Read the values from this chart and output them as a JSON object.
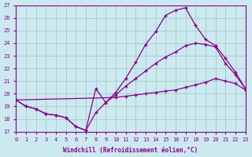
{
  "xlabel": "Windchill (Refroidissement éolien,°C)",
  "xlim": [
    0,
    23
  ],
  "ylim": [
    17,
    27
  ],
  "yticks": [
    17,
    18,
    19,
    20,
    21,
    22,
    23,
    24,
    25,
    26,
    27
  ],
  "xticks": [
    0,
    1,
    2,
    3,
    4,
    5,
    6,
    7,
    8,
    9,
    10,
    11,
    12,
    13,
    14,
    15,
    16,
    17,
    18,
    19,
    20,
    21,
    22,
    23
  ],
  "bg_color": "#cce9f0",
  "grid_color": "#aacfcc",
  "line_color": "#880088",
  "curve_top_x": [
    0,
    1,
    2,
    3,
    4,
    5,
    6,
    7,
    8,
    9,
    10,
    11,
    12,
    13,
    14,
    15,
    16,
    17,
    18,
    19,
    20,
    21,
    22,
    23
  ],
  "curve_top_y": [
    19.5,
    19.0,
    18.8,
    18.4,
    18.3,
    18.1,
    17.4,
    17.1,
    20.4,
    19.3,
    20.1,
    21.2,
    22.5,
    23.9,
    24.9,
    26.2,
    26.6,
    26.8,
    25.4,
    24.3,
    23.8,
    22.8,
    21.7,
    20.4
  ],
  "curve_mid_x": [
    0,
    1,
    2,
    3,
    4,
    5,
    6,
    7,
    8,
    9,
    10,
    11,
    12,
    13,
    14,
    15,
    16,
    17,
    18,
    19,
    20,
    21,
    22,
    23
  ],
  "curve_mid_y": [
    19.5,
    19.0,
    18.8,
    18.4,
    18.3,
    18.1,
    17.4,
    17.1,
    18.5,
    19.3,
    19.9,
    20.6,
    21.2,
    21.8,
    22.4,
    22.9,
    23.3,
    23.8,
    24.0,
    23.9,
    23.7,
    22.4,
    21.5,
    20.4
  ],
  "curve_bot_x": [
    0,
    10,
    11,
    12,
    13,
    14,
    15,
    16,
    17,
    18,
    19,
    20,
    21,
    22,
    23
  ],
  "curve_bot_y": [
    19.5,
    19.7,
    19.8,
    19.9,
    20.0,
    20.1,
    20.2,
    20.3,
    20.5,
    20.7,
    20.9,
    21.2,
    21.0,
    20.8,
    20.3
  ]
}
